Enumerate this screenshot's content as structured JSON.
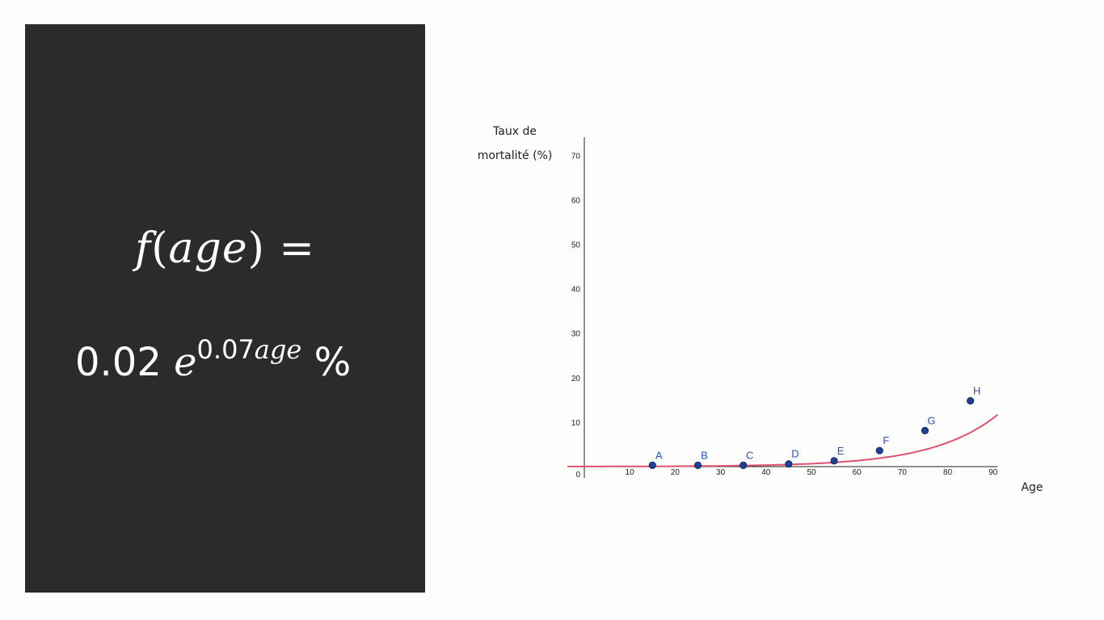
{
  "formula": {
    "lhs_func": "f",
    "lhs_open": "(",
    "lhs_var": "age",
    "lhs_close": ")",
    "lhs_eq": "=",
    "coef": "0.02",
    "base": "e",
    "exp_num": "0.07",
    "exp_var": "age",
    "unit": "%"
  },
  "chart_data": {
    "type": "scatter",
    "title": "",
    "ylabel_line1": "Taux de",
    "ylabel_line2": "mortalité (%)",
    "xlabel": "Age",
    "xlim": [
      0,
      91
    ],
    "ylim": [
      0,
      75
    ],
    "x_ticks": [
      "10",
      "20",
      "30",
      "40",
      "50",
      "60",
      "70",
      "80",
      "90"
    ],
    "y_ticks": [
      "10",
      "20",
      "30",
      "40",
      "50",
      "60",
      "70"
    ],
    "origin_label": "0",
    "curve": {
      "formula": "0.02 * exp(0.07 * x)",
      "color": "#e05070",
      "coef": 0.02,
      "rate": 0.07
    },
    "points": [
      {
        "label": "A",
        "x": 15,
        "y": 0.3
      },
      {
        "label": "B",
        "x": 25,
        "y": 0.3
      },
      {
        "label": "C",
        "x": 35,
        "y": 0.3
      },
      {
        "label": "D",
        "x": 45,
        "y": 0.6
      },
      {
        "label": "E",
        "x": 55,
        "y": 1.3
      },
      {
        "label": "F",
        "x": 65,
        "y": 3.6
      },
      {
        "label": "G",
        "x": 75,
        "y": 8.1
      },
      {
        "label": "H",
        "x": 85,
        "y": 14.8
      }
    ],
    "point_color": "#1f3f8f",
    "grid": false
  }
}
